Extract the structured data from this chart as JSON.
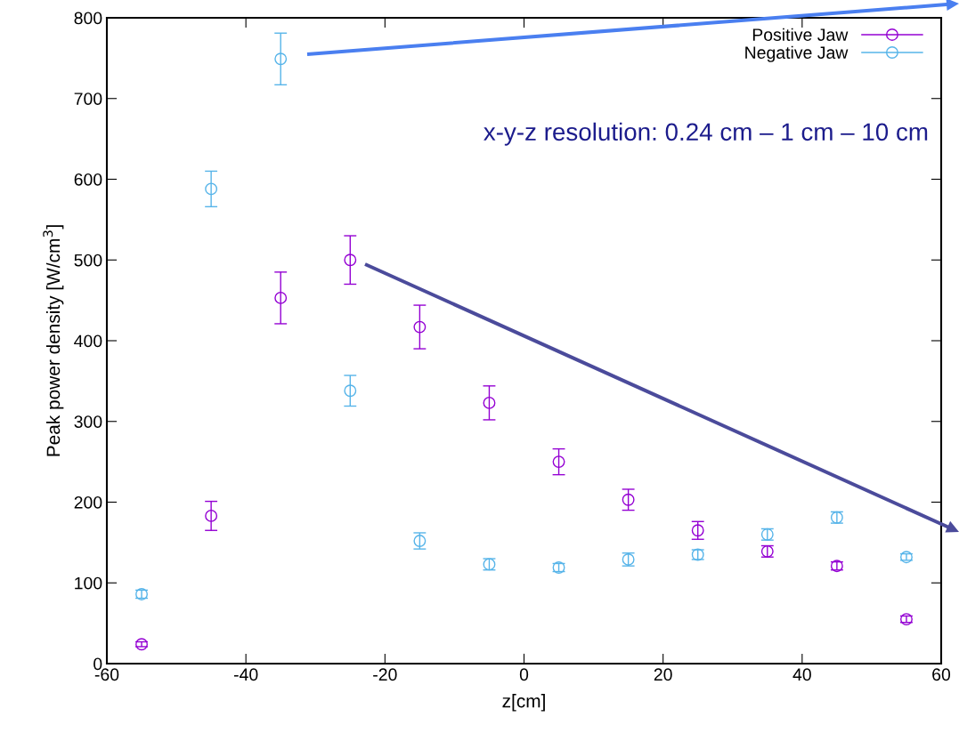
{
  "chart_data": {
    "type": "scatter",
    "xlabel": "z[cm]",
    "ylabel": "Peak power density [W/cm$^{3}$]",
    "x": [
      -55,
      -45,
      -35,
      -25,
      -15,
      -5,
      5,
      15,
      25,
      35,
      45,
      55
    ],
    "series": [
      {
        "name": "Positive Jaw",
        "color": "#9400d3",
        "values": [
          24,
          183,
          453,
          500,
          417,
          323,
          250,
          203,
          165,
          139,
          121,
          55
        ],
        "errors": [
          3,
          18,
          32,
          30,
          27,
          21,
          16,
          13,
          11,
          7,
          5,
          4
        ]
      },
      {
        "name": "Negative Jaw",
        "color": "#56b4e9",
        "values": [
          86,
          588,
          749,
          338,
          152,
          123,
          119,
          129,
          135,
          160,
          181,
          132
        ],
        "errors": [
          5,
          22,
          32,
          19,
          10,
          7,
          5,
          8,
          6,
          7,
          7,
          4
        ]
      }
    ],
    "xlim": [
      -60,
      60
    ],
    "xticks": [
      -60,
      -40,
      -20,
      0,
      20,
      40,
      60
    ],
    "ylim": [
      0,
      800
    ],
    "yticks": [
      0,
      100,
      200,
      300,
      400,
      500,
      600,
      700,
      800
    ],
    "marker": "circle",
    "legend": "top right",
    "grid": false,
    "annotations": [
      "x-y-z resolution: 0.24 cm – 1 cm – 10 cm"
    ]
  }
}
